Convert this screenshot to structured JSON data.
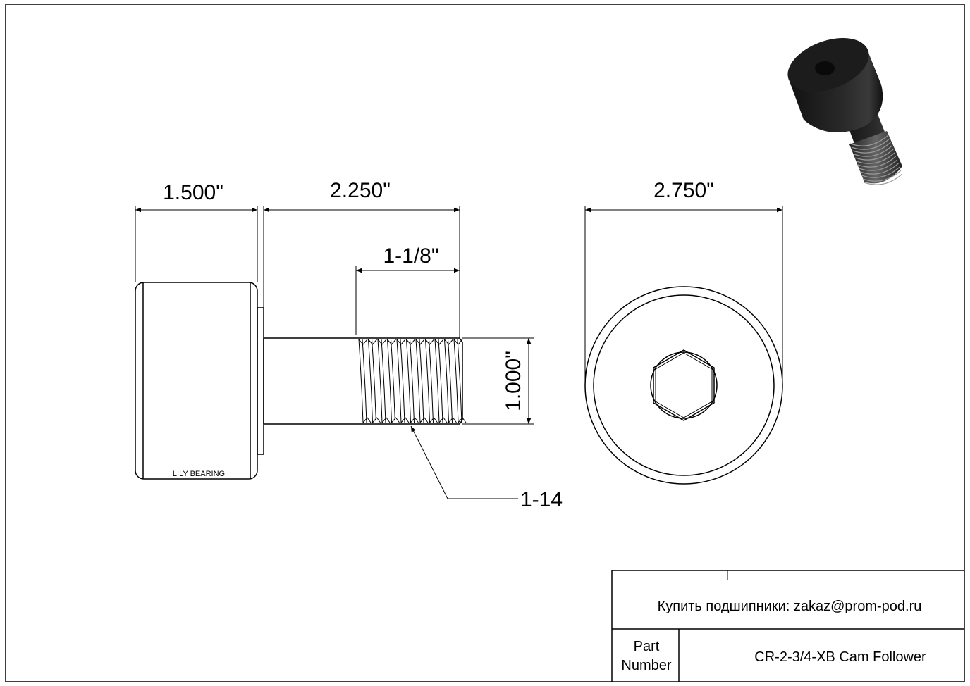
{
  "drawing": {
    "dimensions": {
      "wheel_width": "1.500\"",
      "stud_length": "2.250\"",
      "thread_length": "1-1/8\"",
      "stud_diameter": "1.000\"",
      "thread_spec": "1-14",
      "outer_diameter": "2.750\""
    },
    "brand_mark": "LILY BEARING"
  },
  "title_block": {
    "contact": "Купить подшипники: zakaz@prom-pod.ru",
    "part_number_label_line1": "Part",
    "part_number_label_line2": "Number",
    "part_number": "CR-2-3/4-XB Cam Follower"
  },
  "colors": {
    "line": "#000000",
    "part_render": "#1a1a1a"
  }
}
